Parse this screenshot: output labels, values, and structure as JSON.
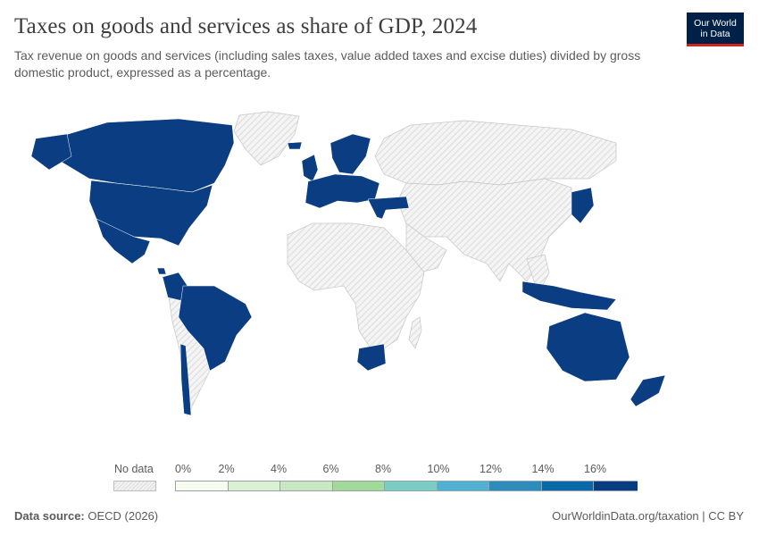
{
  "header": {
    "title": "Taxes on goods and services as share of GDP, 2024",
    "subtitle": "Tax revenue on goods and services (including sales taxes, value added taxes and excise duties) divided by gross domestic product, expressed as a percentage."
  },
  "logo": {
    "line1": "Our World",
    "line2": "in Data",
    "bg_color": "#002147",
    "accent_color": "#ce261e"
  },
  "colors": {
    "data": "#0b3d82",
    "no_data_fill": "#f2f2f2",
    "no_data_hatch": "#d6d6d6",
    "border": "#c8c8c8"
  },
  "map": {
    "countries_with_data": [
      "Canada",
      "United States",
      "Mexico",
      "Costa Rica",
      "Colombia",
      "Brazil",
      "Chile",
      "Iceland",
      "Ireland",
      "United Kingdom",
      "Norway",
      "Sweden",
      "Finland",
      "Denmark",
      "Estonia",
      "Latvia",
      "Lithuania",
      "Poland",
      "Germany",
      "Netherlands",
      "Belgium",
      "France",
      "Spain",
      "Portugal",
      "Italy",
      "Switzerland",
      "Austria",
      "Czechia",
      "Slovakia",
      "Hungary",
      "Slovenia",
      "Croatia",
      "Greece",
      "Turkey",
      "Israel",
      "Japan",
      "South Korea",
      "Indonesia",
      "Papua New Guinea",
      "Australia",
      "New Zealand",
      "South Africa"
    ]
  },
  "legend": {
    "no_data_label": "No data",
    "bins": [
      "0%",
      "2%",
      "4%",
      "6%",
      "8%",
      "10%",
      "12%",
      "14%",
      "16%"
    ],
    "bin_colors": [
      "#f7fcf0",
      "#d9f0d3",
      "#c7e9c0",
      "#a1d99b",
      "#7bccc4",
      "#4eb3d3",
      "#2b8cbe",
      "#0868ac",
      "#083d82"
    ]
  },
  "footer": {
    "source_label": "Data source:",
    "source_value": "OECD (2026)",
    "right": "OurWorldinData.org/taxation | CC BY"
  }
}
